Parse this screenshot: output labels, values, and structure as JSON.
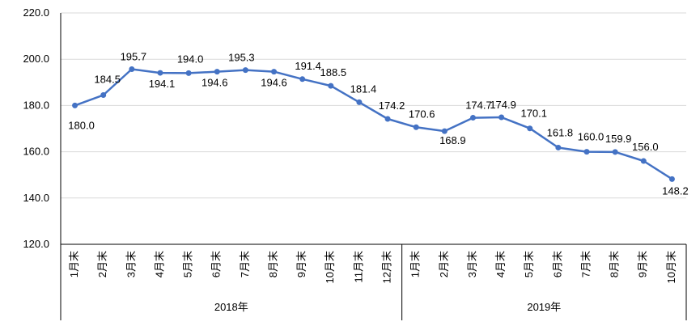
{
  "chart_data": {
    "type": "line",
    "title": "",
    "xlabel": "",
    "ylabel": "",
    "ylim": [
      120,
      220
    ],
    "yticks": [
      "120.0",
      "140.0",
      "160.0",
      "180.0",
      "200.0",
      "220.0"
    ],
    "grid": true,
    "legend": "none",
    "categories": [
      "1月末",
      "2月末",
      "3月末",
      "4月末",
      "5月末",
      "6月末",
      "7月末",
      "8月末",
      "9月末",
      "10月末",
      "11月末",
      "12月末",
      "1月末",
      "2月末",
      "3月末",
      "4月末",
      "5月末",
      "6月末",
      "7月末",
      "8月末",
      "9月末",
      "10月末"
    ],
    "groups": [
      {
        "label": "2018年",
        "count": 12
      },
      {
        "label": "2019年",
        "count": 10
      }
    ],
    "series": [
      {
        "values": [
          180.0,
          184.5,
          195.7,
          194.1,
          194.0,
          194.6,
          195.3,
          194.6,
          191.4,
          188.5,
          181.4,
          174.2,
          170.6,
          168.9,
          174.7,
          174.9,
          170.1,
          161.8,
          160.0,
          159.9,
          156.0,
          148.2
        ],
        "labels": [
          "180.0",
          "184.5",
          "195.7",
          "194.1",
          "194.0",
          "194.6",
          "195.3",
          "194.6",
          "191.4",
          "188.5",
          "181.4",
          "174.2",
          "170.6",
          "168.9",
          "174.7",
          "174.9",
          "170.1",
          "161.8",
          "160.0",
          "159.9",
          "156.0",
          "148.2"
        ],
        "color": "#4472C4"
      }
    ]
  },
  "colors": {
    "line": "#4472C4",
    "grid": "#D9D9D9",
    "axis": "#000000"
  }
}
